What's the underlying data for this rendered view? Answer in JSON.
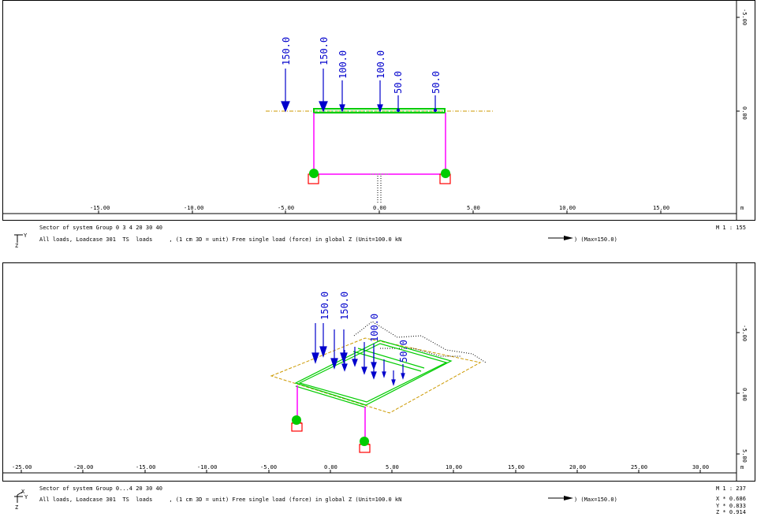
{
  "panel_top": {
    "x_ticks": [
      "-15.00",
      "-10.00",
      "-5.00",
      "0.00",
      "5.00",
      "10.00",
      "15.00"
    ],
    "x_unit": "m",
    "z_ticks": [
      "-5.00",
      "0.00"
    ],
    "loads": [
      "150.0",
      "150.0",
      "100.0",
      "100.0",
      "50.0",
      "50.0"
    ],
    "info_line1": "Sector of system Group 0 3 4 20 30 40",
    "info_line2": "All loads, Loadcase 301  TS  loads     , (1 cm 3D = unit) Free single load (force) in global Z (Unit=100.0 kN",
    "max_label": ") (Max=150.0)",
    "scale": "M 1 : 155",
    "axis_y": "Y",
    "axis_z": "Z"
  },
  "panel_bottom": {
    "x_ticks": [
      "-25.00",
      "-20.00",
      "-15.00",
      "-10.00",
      "-5.00",
      "0.00",
      "5.00",
      "10.00",
      "15.00",
      "20.00",
      "25.00",
      "30.00"
    ],
    "x_unit": "m",
    "z_ticks": [
      "-5.00",
      "0.00",
      "5.00"
    ],
    "loads": [
      "150.0",
      "150.0",
      "100.0",
      "50.0"
    ],
    "info_line1": "Sector of system Group 0...4 20 30 40",
    "info_line2": "All loads, Loadcase 301  TS  loads     , (1 cm 3D = unit) Free single load (force) in global Z (Unit=100.0 kN",
    "max_label": ") (Max=150.0)",
    "scale": "M 1 : 237",
    "view_x": "X * 0.686",
    "view_y": "Y * 0.833",
    "view_z": "Z * 0.914",
    "axis_x": "X",
    "axis_y": "Y",
    "axis_z": "Z"
  },
  "colors": {
    "beam": "#00cc00",
    "column": "#ff00ff",
    "load": "#0000cc",
    "support": "#ff0000",
    "ground": "#cc9900"
  }
}
